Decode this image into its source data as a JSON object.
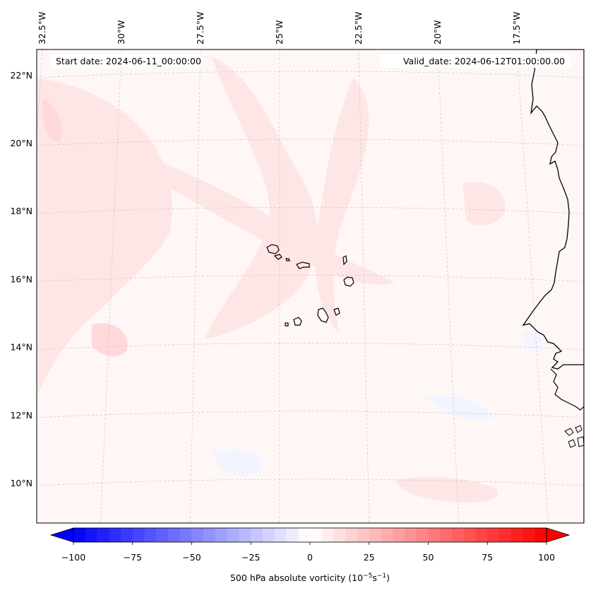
{
  "map": {
    "start_date": "Start date: 2024-06-11_00:00:00",
    "valid_date": "Valid_date: 2024-06-12T01:00:00.00",
    "lon_labels": [
      {
        "label": "32.5°W",
        "lon": -32.5
      },
      {
        "label": "30°W",
        "lon": -30
      },
      {
        "label": "27.5°W",
        "lon": -27.5
      },
      {
        "label": "25°W",
        "lon": -25
      },
      {
        "label": "22.5°W",
        "lon": -22.5
      },
      {
        "label": "20°W",
        "lon": -20
      },
      {
        "label": "17.5°W",
        "lon": -17.5
      }
    ],
    "lat_labels": [
      {
        "label": "22°N",
        "lat": 22
      },
      {
        "label": "20°N",
        "lat": 20
      },
      {
        "label": "18°N",
        "lat": 18
      },
      {
        "label": "16°N",
        "lat": 16
      },
      {
        "label": "14°N",
        "lat": 14
      },
      {
        "label": "12°N",
        "lat": 12
      },
      {
        "label": "10°N",
        "lat": 10
      }
    ],
    "field_colors": {
      "background": "#fff6f6",
      "weak_positive": "#ffe6e6",
      "moderate_positive": "#ffd9d9",
      "weak_negative": "#f2f5ff",
      "coastline": "#000000",
      "gridline": "#bdbdbd"
    }
  },
  "colorbar": {
    "label": "500 hPa absolute vorticity (10",
    "label_exp1": "−5",
    "label_mid": "s",
    "label_exp2": "−1",
    "label_end": ")",
    "min": -100,
    "max": 100,
    "step": 5,
    "ticks": [
      {
        "label": "−100",
        "value": -100
      },
      {
        "label": "−75",
        "value": -75
      },
      {
        "label": "−50",
        "value": -50
      },
      {
        "label": "−25",
        "value": -25
      },
      {
        "label": "0",
        "value": 0
      },
      {
        "label": "25",
        "value": 25
      },
      {
        "label": "50",
        "value": 50
      },
      {
        "label": "75",
        "value": 75
      },
      {
        "label": "100",
        "value": 100
      }
    ],
    "color_low": "#0000ff",
    "color_mid": "#ffffff",
    "color_high": "#ff0000"
  }
}
